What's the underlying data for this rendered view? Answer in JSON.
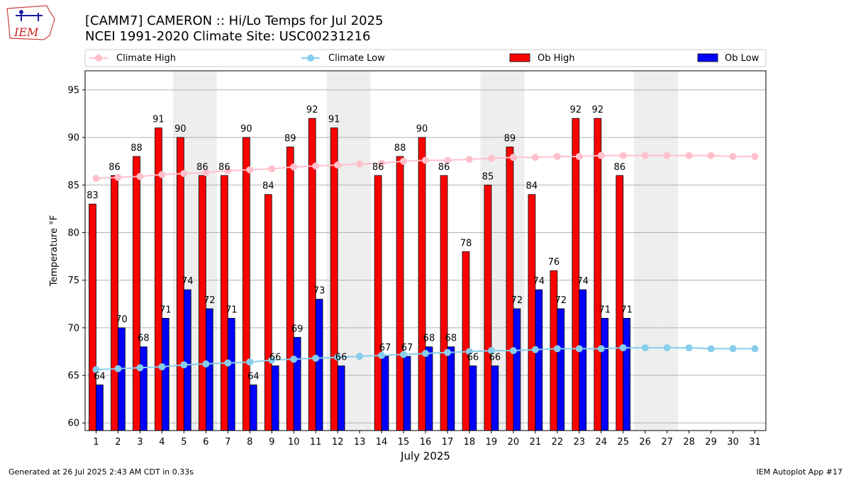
{
  "chart_data": {
    "type": "bar",
    "title": "[CAMM7] CAMERON :: Hi/Lo Temps for Jul 2025",
    "subtitle": "NCEI 1991-2020 Climate Site: USC00231216",
    "xlabel": "July 2025",
    "ylabel": "Temperature °F",
    "ylim": [
      59.2,
      97
    ],
    "yticks": [
      60,
      65,
      70,
      75,
      80,
      85,
      90,
      95
    ],
    "ytick_labels": [
      "60",
      "65",
      "70",
      "75",
      "80",
      "85",
      "90",
      "95"
    ],
    "categories": [
      1,
      2,
      3,
      4,
      5,
      6,
      7,
      8,
      9,
      10,
      11,
      12,
      13,
      14,
      15,
      16,
      17,
      18,
      19,
      20,
      21,
      22,
      23,
      24,
      25,
      26,
      27,
      28,
      29,
      30,
      31
    ],
    "category_labels": [
      "1",
      "2",
      "3",
      "4",
      "5",
      "6",
      "7",
      "8",
      "9",
      "10",
      "11",
      "12",
      "13",
      "14",
      "15",
      "16",
      "17",
      "18",
      "19",
      "20",
      "21",
      "22",
      "23",
      "24",
      "25",
      "26",
      "27",
      "28",
      "29",
      "30",
      "31"
    ],
    "weekend_days": [
      5,
      6,
      12,
      13,
      19,
      20,
      26,
      27
    ],
    "grid": true,
    "legend_placement": "top",
    "series": [
      {
        "name": "Ob High",
        "kind": "bar",
        "color": "#ff0000",
        "values": [
          83,
          86,
          88,
          91,
          90,
          86,
          86,
          90,
          84,
          89,
          92,
          91,
          null,
          86,
          88,
          90,
          86,
          78,
          85,
          89,
          84,
          76,
          92,
          92,
          86,
          null,
          null,
          null,
          null,
          null,
          null
        ],
        "labels": [
          "83",
          "86",
          "88",
          "91",
          "90",
          "86",
          "86",
          "90",
          "84",
          "89",
          "92",
          "91",
          "",
          "86",
          "88",
          "90",
          "86",
          "78",
          "85",
          "89",
          "84",
          "76",
          "92",
          "92",
          "86",
          "",
          "",
          "",
          "",
          "",
          ""
        ]
      },
      {
        "name": "Ob Low",
        "kind": "bar",
        "color": "#0000ff",
        "values": [
          64,
          70,
          68,
          71,
          74,
          72,
          71,
          64,
          66,
          69,
          73,
          66,
          null,
          67,
          67,
          68,
          68,
          66,
          66,
          72,
          74,
          72,
          74,
          71,
          71,
          null,
          null,
          null,
          null,
          null,
          null
        ],
        "labels": [
          "64",
          "70",
          "68",
          "71",
          "74",
          "72",
          "71",
          "64",
          "66",
          "69",
          "73",
          "66",
          "",
          "67",
          "67",
          "68",
          "68",
          "66",
          "66",
          "72",
          "74",
          "72",
          "74",
          "71",
          "71",
          "",
          "",
          "",
          "",
          "",
          ""
        ]
      },
      {
        "name": "Climate High",
        "kind": "line",
        "color": "#ffc0cb",
        "values": [
          85.7,
          85.8,
          85.9,
          86.1,
          86.2,
          86.3,
          86.5,
          86.6,
          86.7,
          86.9,
          87.0,
          87.1,
          87.2,
          87.3,
          87.5,
          87.6,
          87.6,
          87.7,
          87.8,
          87.9,
          87.9,
          88.0,
          88.0,
          88.1,
          88.1,
          88.1,
          88.1,
          88.1,
          88.1,
          88.0,
          88.0
        ]
      },
      {
        "name": "Climate Low",
        "kind": "line",
        "color": "#87ceeb",
        "values": [
          65.6,
          65.7,
          65.8,
          65.9,
          66.1,
          66.2,
          66.3,
          66.4,
          66.6,
          66.7,
          66.8,
          66.9,
          67.0,
          67.1,
          67.2,
          67.3,
          67.4,
          67.5,
          67.6,
          67.6,
          67.7,
          67.8,
          67.8,
          67.8,
          67.9,
          67.9,
          67.9,
          67.9,
          67.8,
          67.8,
          67.8
        ]
      }
    ],
    "legend_order": [
      "Climate High",
      "Climate Low",
      "Ob High",
      "Ob Low"
    ]
  },
  "logo_text": "IEM",
  "footer_left": "Generated at 26 Jul 2025 2:43 AM CDT in 0.33s",
  "footer_right": "IEM Autoplot App #17"
}
